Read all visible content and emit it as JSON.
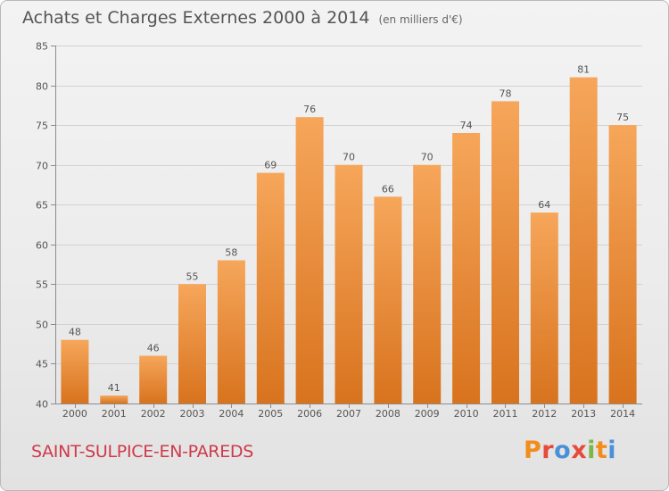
{
  "header": {
    "title": "Achats et Charges Externes 2000 à 2014",
    "subtitle": "(en milliers d'€)"
  },
  "footer": {
    "commune": "SAINT-SULPICE-EN-PAREDS",
    "brand_letters": [
      "P",
      "r",
      "o",
      "x",
      "i",
      "t",
      "i"
    ],
    "brand_colors": [
      "#f28c1a",
      "#e64a3c",
      "#4a90d9",
      "#e64a3c",
      "#7ab648",
      "#f28c1a",
      "#4a90d9"
    ]
  },
  "chart_data": {
    "type": "bar",
    "title": "Achats et Charges Externes 2000 à 2014",
    "subtitle": "(en milliers d'€)",
    "xlabel": "",
    "ylabel": "",
    "categories": [
      "2000",
      "2001",
      "2002",
      "2003",
      "2004",
      "2005",
      "2006",
      "2007",
      "2008",
      "2009",
      "2010",
      "2011",
      "2012",
      "2013",
      "2014"
    ],
    "values": [
      48,
      41,
      46,
      55,
      58,
      69,
      76,
      70,
      66,
      70,
      74,
      78,
      64,
      81,
      75
    ],
    "ylim": [
      40,
      85
    ],
    "yticks": [
      40,
      45,
      50,
      55,
      60,
      65,
      70,
      75,
      80,
      85
    ],
    "grid": true,
    "colors": {
      "bar_light": "#f6a65a",
      "bar_dark": "#d8731e",
      "grid": "#d2d2d2",
      "axis": "#8c8c8c"
    }
  }
}
